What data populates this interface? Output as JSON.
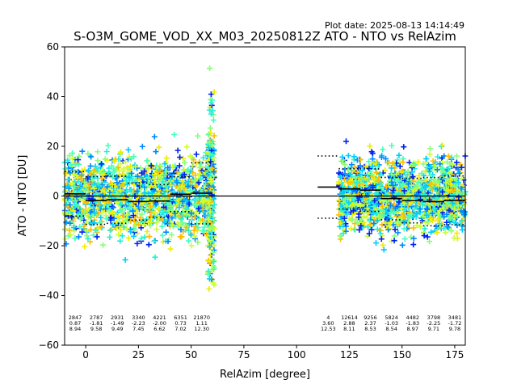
{
  "chart_data": {
    "type": "scatter",
    "title": "S-O3M_GOME_VOD_XX_M03_20250812Z ATO - NTO vs RelAzim",
    "plot_date": "Plot date: 2025-08-13 14:14:49",
    "xlabel": "RelAzim [degree]",
    "ylabel": "ATO - NTO [DU]",
    "xlim": [
      -10,
      180
    ],
    "ylim": [
      -60,
      60
    ],
    "xticks": [
      "0",
      "25",
      "50",
      "75",
      "100",
      "125",
      "150",
      "175"
    ],
    "yticks": [
      "−60",
      "−40",
      "−20",
      "0",
      "20",
      "40",
      "60"
    ],
    "colors": [
      "#0022ee",
      "#0088ff",
      "#00ccff",
      "#22eedd",
      "#44ffbb",
      "#88ff77",
      "#ccff33",
      "#eeee00",
      "#ffbb00"
    ],
    "bin_width": 10,
    "bins": [
      {
        "x": -5,
        "count": "2847",
        "mean": "0.87",
        "sd": "8.94",
        "mean_v": 0.87,
        "sd_v": 8.94
      },
      {
        "x": 5,
        "count": "2787",
        "mean": "-1.81",
        "sd": "9.58",
        "mean_v": -1.81,
        "sd_v": 9.58
      },
      {
        "x": 15,
        "count": "2931",
        "mean": "-1.49",
        "sd": "9.49",
        "mean_v": -1.49,
        "sd_v": 9.49
      },
      {
        "x": 25,
        "count": "3340",
        "mean": "-2.23",
        "sd": "7.45",
        "mean_v": -2.23,
        "sd_v": 7.45
      },
      {
        "x": 35,
        "count": "4221",
        "mean": "-2.00",
        "sd": "6.62",
        "mean_v": -2.0,
        "sd_v": 6.62
      },
      {
        "x": 45,
        "count": "6351",
        "mean": "0.73",
        "sd": "7.02",
        "mean_v": 0.73,
        "sd_v": 7.02
      },
      {
        "x": 55,
        "count": "21870",
        "mean": "1.11",
        "sd": "12.30",
        "mean_v": 1.11,
        "sd_v": 12.3
      },
      {
        "x": 115,
        "count": "4",
        "mean": "3.60",
        "sd": "12.53",
        "mean_v": 3.6,
        "sd_v": 12.53
      },
      {
        "x": 125,
        "count": "12614",
        "mean": "2.88",
        "sd": "8.11",
        "mean_v": 2.88,
        "sd_v": 8.11
      },
      {
        "x": 135,
        "count": "9256",
        "mean": "2.37",
        "sd": "8.53",
        "mean_v": 2.37,
        "sd_v": 8.53
      },
      {
        "x": 145,
        "count": "5824",
        "mean": "-1.03",
        "sd": "8.54",
        "mean_v": -1.03,
        "sd_v": 8.54
      },
      {
        "x": 155,
        "count": "4482",
        "mean": "-1.83",
        "sd": "8.97",
        "mean_v": -1.83,
        "sd_v": 8.97
      },
      {
        "x": 165,
        "count": "3798",
        "mean": "-2.25",
        "sd": "9.71",
        "mean_v": -2.25,
        "sd_v": 9.71
      },
      {
        "x": 175,
        "count": "3481",
        "mean": "-1.72",
        "sd": "9.78",
        "mean_v": -1.72,
        "sd_v": 9.78
      }
    ],
    "clusters": [
      {
        "x0": -10,
        "x1": 60,
        "spread": 14,
        "center": 0
      },
      {
        "x0": 58,
        "x1": 61,
        "spread": 30,
        "center": 2
      },
      {
        "x0": 120,
        "x1": 180,
        "spread": 13,
        "center": 0
      }
    ]
  }
}
